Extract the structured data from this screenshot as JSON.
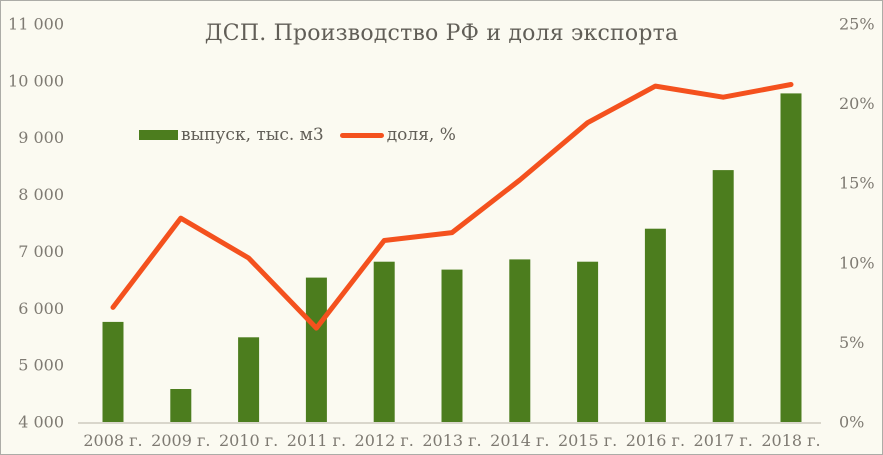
{
  "frame": {
    "background": "#FBFAF1",
    "border_color": "#ACACA7"
  },
  "chart_data": {
    "type": "bar+line",
    "title": "ДСП. Производство РФ и доля экспорта",
    "categories": [
      "2008 г.",
      "2009 г.",
      "2010 г.",
      "2011 г.",
      "2012 г.",
      "2013 г.",
      "2014 г.",
      "2015 г.",
      "2016 г.",
      "2017 г.",
      "2018 г."
    ],
    "series": [
      {
        "name": "выпуск, тыс. м3",
        "type": "bar",
        "axis": "left",
        "color": "#4C7D1E",
        "values": [
          5760,
          4580,
          5490,
          6540,
          6820,
          6680,
          6860,
          6820,
          7400,
          8430,
          9780
        ]
      },
      {
        "name": "доля, %",
        "type": "line",
        "axis": "right",
        "color": "#F4511E",
        "values": [
          7.2,
          12.8,
          10.3,
          5.9,
          11.4,
          11.9,
          15.2,
          18.8,
          21.1,
          20.4,
          21.2
        ]
      }
    ],
    "left_axis": {
      "min": 4000,
      "max": 11000,
      "step": 1000,
      "tick_labels": [
        "11 000",
        "10 000",
        "9 000",
        "8 000",
        "7 000",
        "6 000",
        "5 000",
        "4 000"
      ]
    },
    "right_axis": {
      "min": 0,
      "max": 25,
      "step": 5,
      "tick_labels": [
        "25%",
        "20%",
        "15%",
        "10%",
        "5%",
        "0%"
      ]
    },
    "legend_position": "inside-top-left",
    "grid": false,
    "title_color": "#615E57",
    "tick_color": "#7E7A72",
    "axis_line_color": "#D9D6CB"
  }
}
